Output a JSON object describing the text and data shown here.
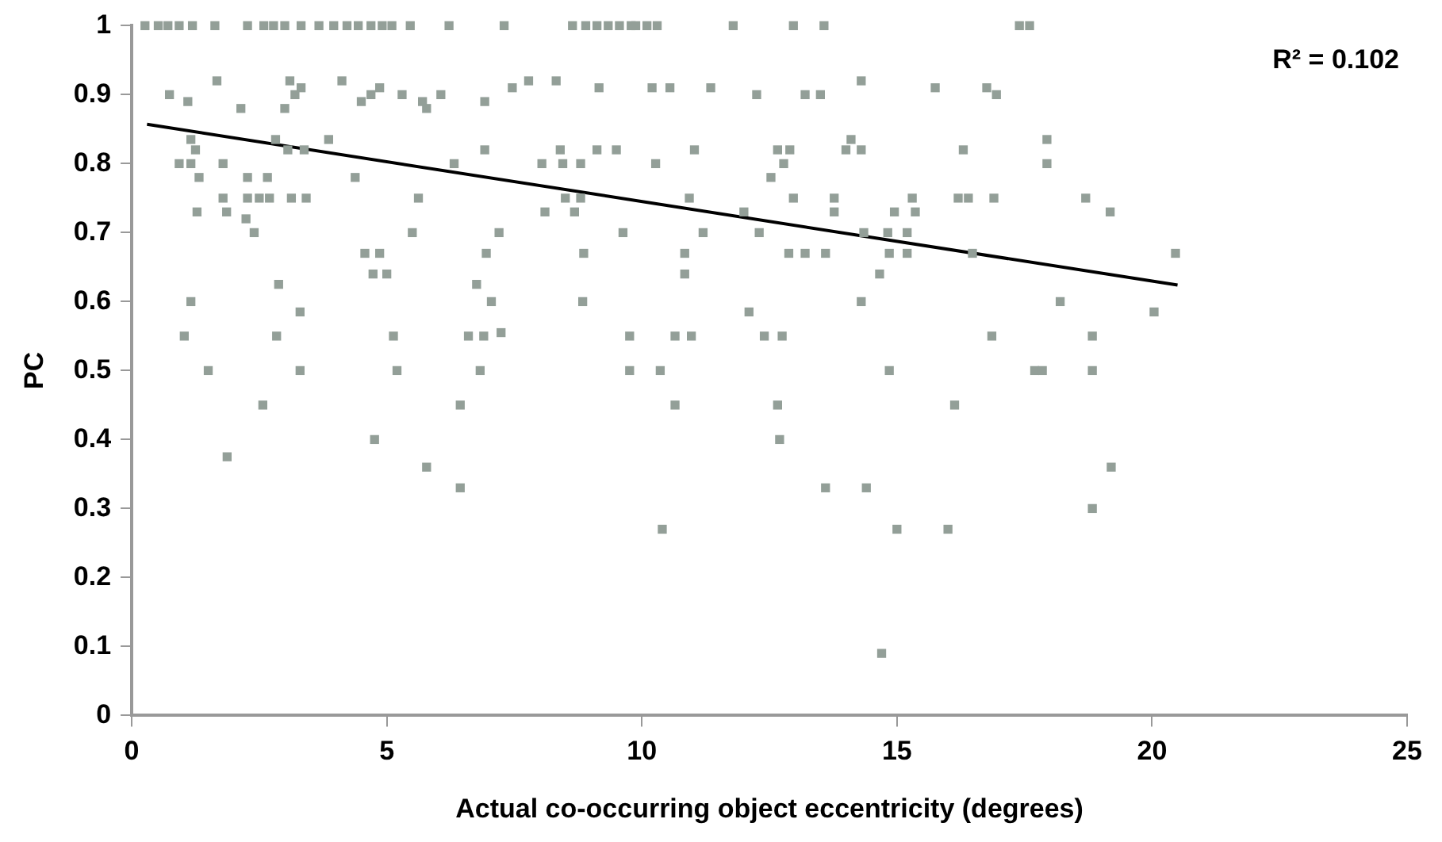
{
  "chart_data": {
    "type": "scatter",
    "xlabel": "Actual co-occurring object eccentricity (degrees)",
    "ylabel": "PC",
    "annotations": [
      "R² = 0.102"
    ],
    "xlim": [
      0,
      25
    ],
    "ylim": [
      0,
      1
    ],
    "xticks": [
      0,
      5,
      10,
      15,
      20,
      25
    ],
    "yticks": [
      0,
      0.1,
      0.2,
      0.3,
      0.4,
      0.5,
      0.6,
      0.7,
      0.8,
      0.9,
      1
    ],
    "grid": false,
    "legend": false,
    "marker": "square",
    "series": [
      {
        "color": "#939f98",
        "x": [
          0.26,
          0.52,
          0.71,
          0.93,
          1.19,
          1.63,
          2.27,
          2.59,
          2.78,
          3.0,
          3.32,
          3.67,
          3.96,
          4.22,
          4.44,
          4.69,
          4.91,
          5.1,
          5.46,
          6.22,
          7.3,
          8.64,
          8.9,
          9.12,
          9.34,
          9.56,
          9.79,
          9.88,
          10.1,
          10.3,
          11.79,
          12.97,
          13.57,
          17.4,
          17.6,
          1.67,
          3.1,
          4.12,
          7.78,
          8.32,
          14.3,
          3.32,
          7.46,
          9.16,
          10.2,
          10.55,
          11.35,
          15.75,
          16.76,
          4.86,
          0.74,
          4.69,
          5.3,
          6.06,
          12.25,
          13.2,
          13.5,
          16.95,
          3.2,
          1.1,
          4.5,
          5.7,
          6.92,
          2.14,
          3.0,
          5.78,
          1.16,
          2.82,
          3.86,
          14.1,
          17.94,
          1.25,
          3.06,
          3.38,
          6.92,
          8.4,
          9.12,
          9.5,
          11.03,
          12.66,
          12.9,
          14.0,
          14.3,
          16.3,
          0.93,
          1.16,
          1.79,
          6.32,
          8.04,
          8.45,
          8.8,
          10.27,
          12.78,
          17.94,
          1.32,
          2.27,
          2.66,
          4.38,
          12.53,
          1.79,
          2.27,
          2.5,
          2.7,
          3.13,
          3.42,
          5.62,
          8.5,
          8.8,
          10.93,
          12.97,
          13.77,
          15.3,
          16.2,
          16.4,
          16.9,
          18.7,
          1.28,
          1.86,
          8.1,
          8.68,
          12.0,
          13.77,
          14.95,
          15.36,
          19.18,
          2.24,
          2.4,
          5.5,
          7.2,
          9.63,
          11.2,
          12.3,
          14.35,
          14.82,
          15.2,
          4.57,
          4.86,
          6.95,
          8.86,
          10.84,
          12.88,
          13.2,
          13.6,
          14.85,
          15.2,
          16.48,
          20.46,
          4.73,
          5.0,
          10.84,
          14.66,
          2.88,
          6.76,
          1.16,
          7.05,
          8.84,
          14.3,
          18.2,
          3.3,
          12.1,
          20.04,
          1.03,
          2.84,
          5.13,
          6.6,
          6.9,
          9.76,
          10.65,
          10.97,
          12.4,
          12.75,
          16.86,
          18.83,
          7.24,
          1.5,
          3.3,
          5.2,
          6.83,
          9.76,
          10.36,
          14.85,
          17.7,
          17.85,
          18.83,
          2.57,
          6.44,
          10.65,
          12.66,
          16.13,
          4.76,
          12.7,
          1.87,
          5.78,
          19.2,
          6.44,
          13.6,
          14.4,
          10.4,
          15.0,
          16.0,
          18.83,
          14.7
        ],
        "values": [
          1,
          1,
          1,
          1,
          1,
          1,
          1,
          1,
          1,
          1,
          1,
          1,
          1,
          1,
          1,
          1,
          1,
          1,
          1,
          1,
          1,
          1,
          1,
          1,
          1,
          1,
          1,
          1,
          1,
          1,
          1,
          1,
          1,
          1,
          1,
          0.92,
          0.92,
          0.92,
          0.92,
          0.92,
          0.92,
          0.91,
          0.91,
          0.91,
          0.91,
          0.91,
          0.91,
          0.91,
          0.91,
          0.91,
          0.9,
          0.9,
          0.9,
          0.9,
          0.9,
          0.9,
          0.9,
          0.9,
          0.9,
          0.89,
          0.89,
          0.89,
          0.89,
          0.88,
          0.88,
          0.88,
          0.835,
          0.835,
          0.835,
          0.835,
          0.835,
          0.82,
          0.82,
          0.82,
          0.82,
          0.82,
          0.82,
          0.82,
          0.82,
          0.82,
          0.82,
          0.82,
          0.82,
          0.82,
          0.8,
          0.8,
          0.8,
          0.8,
          0.8,
          0.8,
          0.8,
          0.8,
          0.8,
          0.8,
          0.78,
          0.78,
          0.78,
          0.78,
          0.78,
          0.75,
          0.75,
          0.75,
          0.75,
          0.75,
          0.75,
          0.75,
          0.75,
          0.75,
          0.75,
          0.75,
          0.75,
          0.75,
          0.75,
          0.75,
          0.75,
          0.75,
          0.73,
          0.73,
          0.73,
          0.73,
          0.73,
          0.73,
          0.73,
          0.73,
          0.73,
          0.72,
          0.7,
          0.7,
          0.7,
          0.7,
          0.7,
          0.7,
          0.7,
          0.7,
          0.7,
          0.67,
          0.67,
          0.67,
          0.67,
          0.67,
          0.67,
          0.67,
          0.67,
          0.67,
          0.67,
          0.67,
          0.67,
          0.64,
          0.64,
          0.64,
          0.64,
          0.625,
          0.625,
          0.6,
          0.6,
          0.6,
          0.6,
          0.6,
          0.585,
          0.585,
          0.585,
          0.55,
          0.55,
          0.55,
          0.55,
          0.55,
          0.55,
          0.55,
          0.55,
          0.55,
          0.55,
          0.55,
          0.55,
          0.555,
          0.5,
          0.5,
          0.5,
          0.5,
          0.5,
          0.5,
          0.5,
          0.5,
          0.5,
          0.5,
          0.45,
          0.45,
          0.45,
          0.45,
          0.45,
          0.4,
          0.4,
          0.375,
          0.36,
          0.36,
          0.33,
          0.33,
          0.33,
          0.27,
          0.27,
          0.27,
          0.3,
          0.09
        ]
      },
      {
        "type": "line",
        "color": "#000000",
        "marker": "none",
        "x": [
          0.3,
          20.5
        ],
        "values": [
          0.857,
          0.624
        ]
      }
    ]
  }
}
